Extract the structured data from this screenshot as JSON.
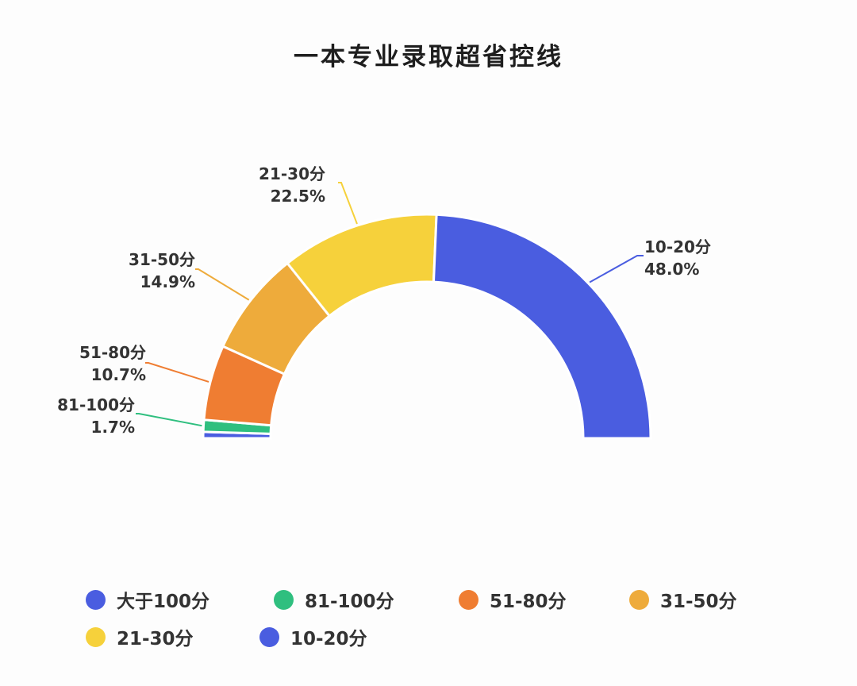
{
  "title": "一本专业录取超省控线",
  "chart_data": {
    "type": "pie",
    "variant": "semi-donut",
    "title": "一本专业录取超省控线",
    "slices": [
      {
        "label": "大于100分",
        "value": 0.9,
        "percent_label": "",
        "color": "#4a5de0",
        "show_label": false
      },
      {
        "label": "81-100分",
        "value": 1.7,
        "percent_label": "1.7%",
        "color": "#2fbf7f",
        "show_label": true
      },
      {
        "label": "51-80分",
        "value": 10.7,
        "percent_label": "10.7%",
        "color": "#ef7d32",
        "show_label": true
      },
      {
        "label": "31-50分",
        "value": 14.9,
        "percent_label": "14.9%",
        "color": "#eeab3b",
        "show_label": true
      },
      {
        "label": "21-30分",
        "value": 22.5,
        "percent_label": "22.5%",
        "color": "#f6d13b",
        "show_label": true
      },
      {
        "label": "10-20分",
        "value": 48.0,
        "percent_label": "48.0%",
        "color": "#4a5de0",
        "show_label": true
      }
    ],
    "legend": [
      {
        "label": "大于100分",
        "color": "#4a5de0"
      },
      {
        "label": "81-100分",
        "color": "#2fbf7f"
      },
      {
        "label": "51-80分",
        "color": "#ef7d32"
      },
      {
        "label": "31-50分",
        "color": "#eeab3b"
      },
      {
        "label": "21-30分",
        "color": "#f6d13b"
      },
      {
        "label": "10-20分",
        "color": "#4a5de0"
      }
    ],
    "legend_position": "bottom-left"
  }
}
